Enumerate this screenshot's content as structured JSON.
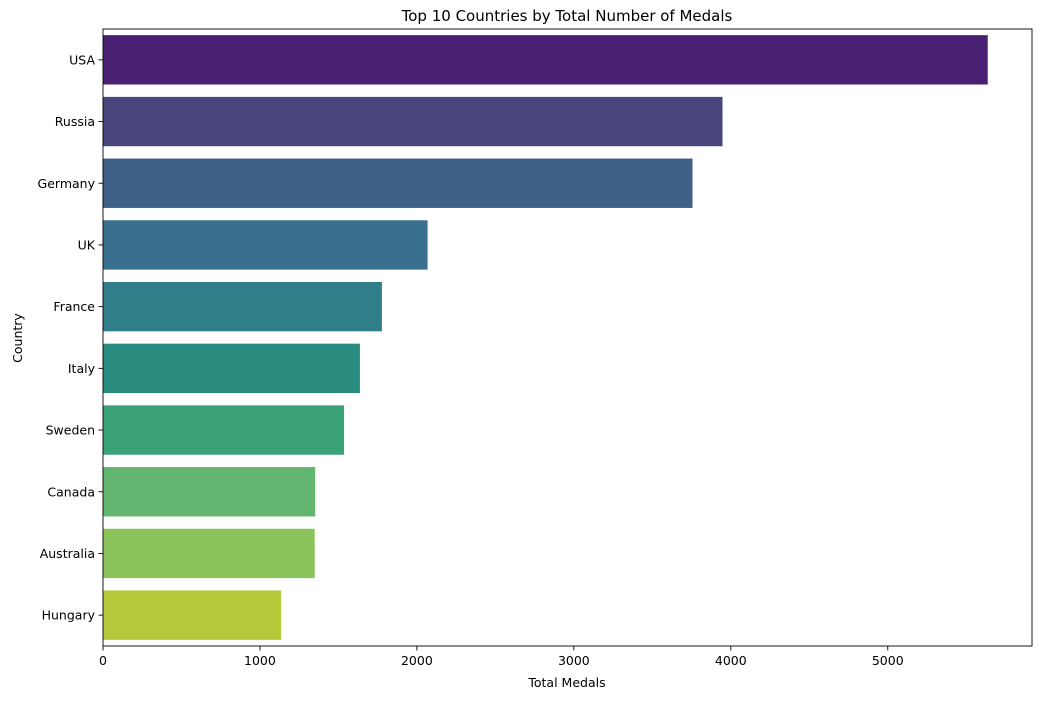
{
  "chart_data": {
    "type": "bar",
    "orientation": "horizontal",
    "title": "Top 10 Countries by Total Number of Medals",
    "xlabel": "Total Medals",
    "ylabel": "Country",
    "categories": [
      "USA",
      "Russia",
      "Germany",
      "UK",
      "France",
      "Italy",
      "Sweden",
      "Canada",
      "Australia",
      "Hungary"
    ],
    "values": [
      5637,
      3947,
      3756,
      2068,
      1777,
      1637,
      1536,
      1352,
      1349,
      1135
    ],
    "xlim": [
      0,
      5919
    ],
    "xticks": [
      0,
      1000,
      2000,
      3000,
      4000,
      5000
    ],
    "grid": false,
    "colors": [
      "#482173",
      "#47457c",
      "#3e5f86",
      "#38708d",
      "#2f7e89",
      "#2a8b7f",
      "#3ba277",
      "#62b66f",
      "#8bc45a",
      "#b4c83a"
    ]
  }
}
